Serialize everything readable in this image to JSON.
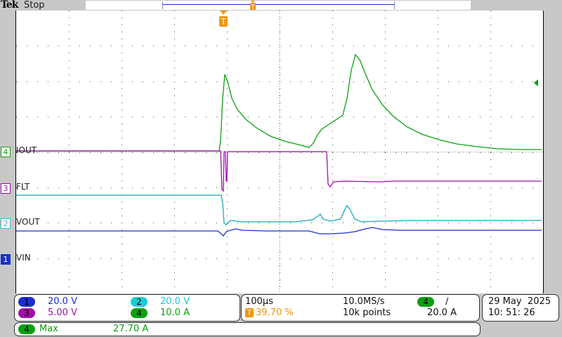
{
  "header": {
    "brand": "Tek",
    "acq_state": "Stop"
  },
  "colors": {
    "ch1": "#1a2fd0",
    "ch2": "#19cdd6",
    "ch3": "#a010a8",
    "ch4": "#0aa010",
    "trigger": "#f0960a"
  },
  "channels": [
    {
      "num": "1",
      "label": "VIN",
      "scale": "20.0 V"
    },
    {
      "num": "2",
      "label": "VOUT",
      "scale": "20.0 V"
    },
    {
      "num": "3",
      "label": "FLT",
      "scale": "5.00 V"
    },
    {
      "num": "4",
      "label": "IOUT",
      "scale": "10.0 A"
    }
  ],
  "timebase": {
    "scale": "100µs",
    "trigger_position": "39.70 %",
    "sample_rate": "10.0MS/s",
    "record_length": "10k points"
  },
  "trigger": {
    "source": "4",
    "slope": "∕",
    "level": "20.0 A",
    "marker": "T"
  },
  "datetime": {
    "date": "29 May",
    "year": "2025",
    "time": "10: 51: 26"
  },
  "measurement": {
    "source": "4",
    "name": "Max",
    "value": "27.70 A"
  }
}
